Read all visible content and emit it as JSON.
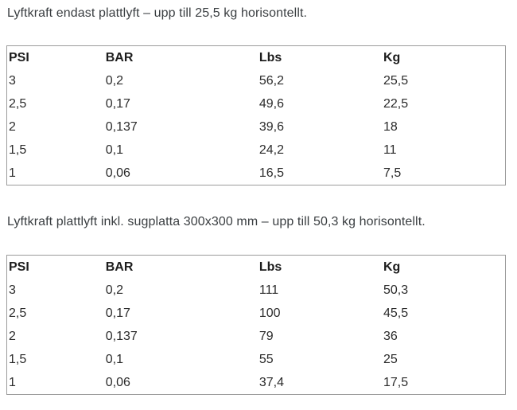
{
  "colors": {
    "background": "#ffffff",
    "title_text": "#3a3e41",
    "table_text": "#2b2b2b",
    "header_text": "#1d1d1d",
    "table_border": "#9b9b9b"
  },
  "sections": [
    {
      "title": "Lyftkraft endast plattlyft – upp till 25,5 kg horisontellt.",
      "table": {
        "headers": [
          "PSI",
          "BAR",
          "Lbs",
          "Kg"
        ],
        "rows": [
          [
            "3",
            "0,2",
            "56,2",
            "25,5"
          ],
          [
            "2,5",
            "0,17",
            "49,6",
            "22,5"
          ],
          [
            "2",
            "0,137",
            "39,6",
            "18"
          ],
          [
            "1,5",
            "0,1",
            "24,2",
            "11"
          ],
          [
            "1",
            "0,06",
            "16,5",
            "7,5"
          ]
        ]
      }
    },
    {
      "title": "Lyftkraft plattlyft inkl. sugplatta 300x300 mm – upp till 50,3 kg horisontellt.",
      "table": {
        "headers": [
          "PSI",
          "BAR",
          "Lbs",
          "Kg"
        ],
        "rows": [
          [
            "3",
            "0,2",
            "111",
            "50,3"
          ],
          [
            "2,5",
            "0,17",
            "100",
            "45,5"
          ],
          [
            "2",
            "0,137",
            "79",
            "36"
          ],
          [
            "1,5",
            "0,1",
            "55",
            "25"
          ],
          [
            "1",
            "0,06",
            "37,4",
            "17,5"
          ]
        ]
      }
    }
  ]
}
